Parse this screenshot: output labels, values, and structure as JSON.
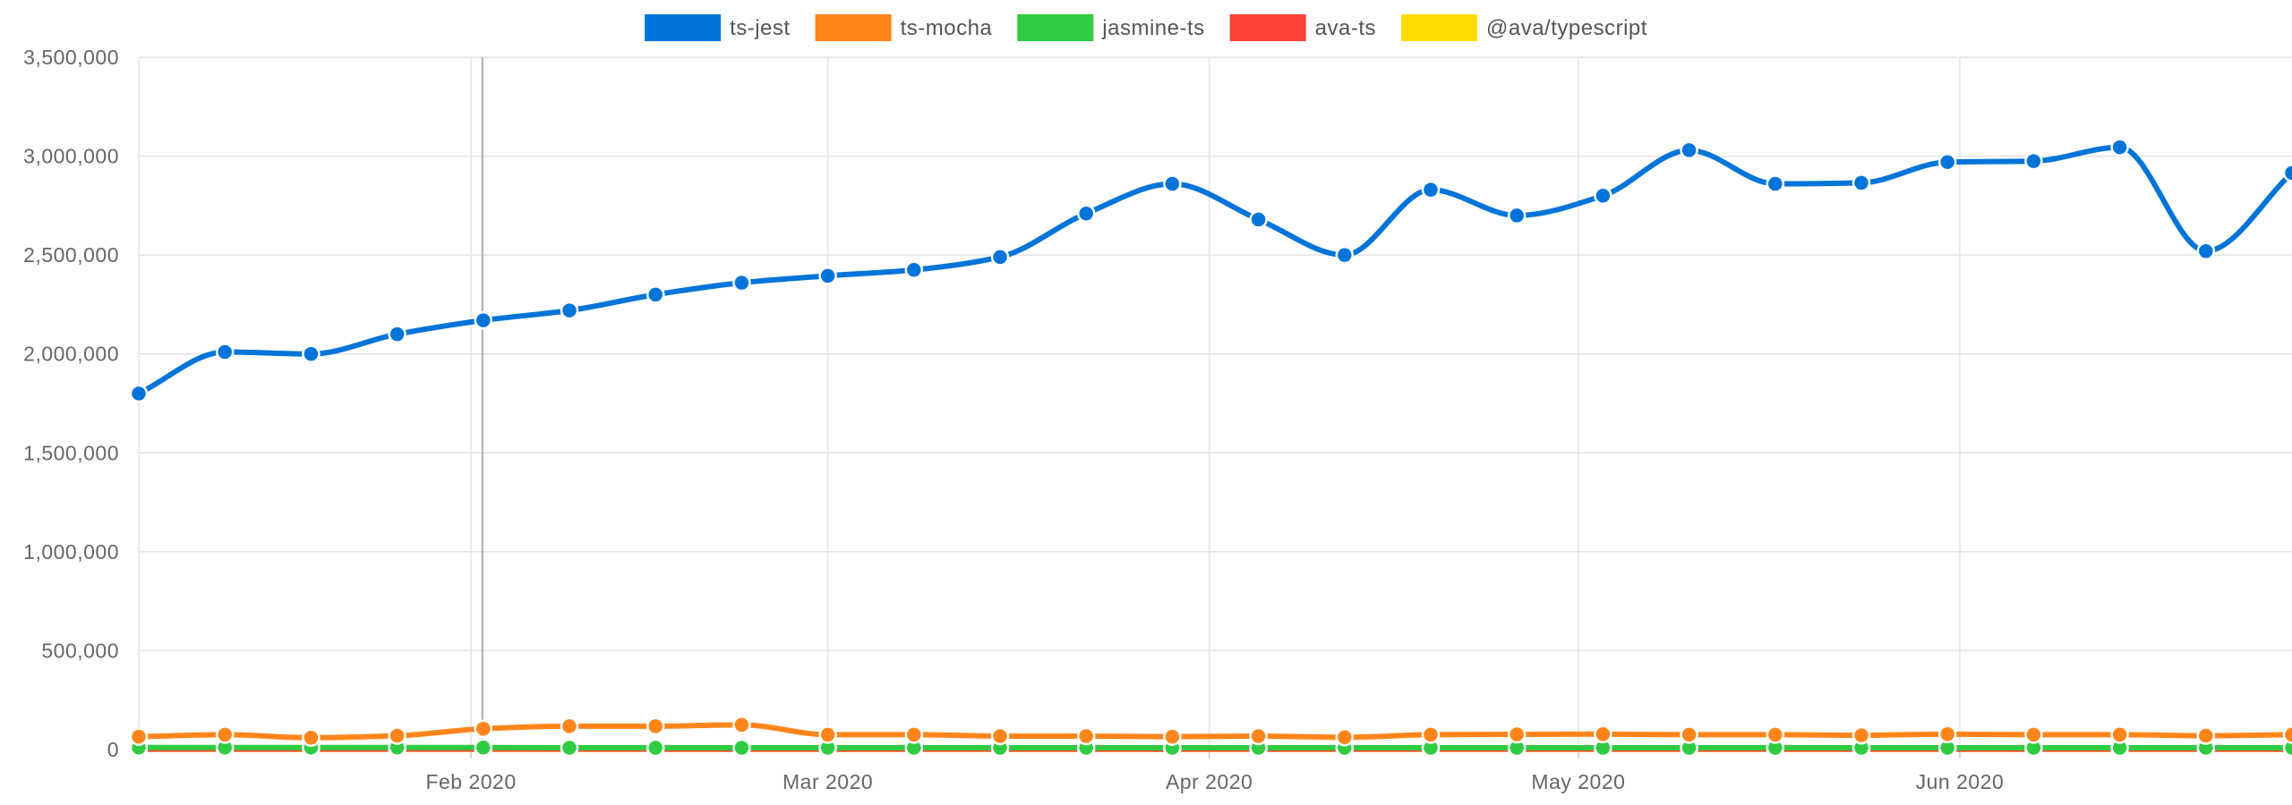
{
  "chart_data": {
    "type": "line",
    "title": "",
    "xlabel": "",
    "ylabel": "",
    "x": [
      "2020-01-05",
      "2020-01-12",
      "2020-01-19",
      "2020-01-26",
      "2020-02-02",
      "2020-02-09",
      "2020-02-16",
      "2020-02-23",
      "2020-03-01",
      "2020-03-08",
      "2020-03-15",
      "2020-03-22",
      "2020-03-29",
      "2020-04-05",
      "2020-04-12",
      "2020-04-19",
      "2020-04-26",
      "2020-05-03",
      "2020-05-10",
      "2020-05-17",
      "2020-05-24",
      "2020-05-31",
      "2020-06-07",
      "2020-06-14",
      "2020-06-21",
      "2020-06-28"
    ],
    "x_ticks": [
      {
        "date": "2020-02-01",
        "label": "Feb 2020"
      },
      {
        "date": "2020-03-01",
        "label": "Mar 2020"
      },
      {
        "date": "2020-04-01",
        "label": "Apr 2020"
      },
      {
        "date": "2020-05-01",
        "label": "May 2020"
      },
      {
        "date": "2020-06-01",
        "label": "Jun 2020"
      }
    ],
    "y_ticks": [
      "0",
      "500,000",
      "1,000,000",
      "1,500,000",
      "2,000,000",
      "2,500,000",
      "3,000,000",
      "3,500,000"
    ],
    "ylim": [
      0,
      3500000
    ],
    "grid": true,
    "legend_position": "top-center",
    "series": [
      {
        "name": "ts-jest",
        "color": "#0074d9",
        "values": [
          1800000,
          2010000,
          2000000,
          2100000,
          2170000,
          2220000,
          2300000,
          2360000,
          2395000,
          2425000,
          2490000,
          2710000,
          2860000,
          2680000,
          2500000,
          2830000,
          2700000,
          2800000,
          3030000,
          2860000,
          2865000,
          2970000,
          2975000,
          3045000,
          2520000,
          2915000
        ]
      },
      {
        "name": "ts-mocha",
        "color": "#ff851b",
        "values": [
          65000,
          75000,
          60000,
          70000,
          105000,
          118000,
          118000,
          125000,
          75000,
          75000,
          68000,
          68000,
          65000,
          68000,
          62000,
          75000,
          77000,
          78000,
          75000,
          75000,
          72000,
          78000,
          75000,
          75000,
          70000,
          75000
        ]
      },
      {
        "name": "jasmine-ts",
        "color": "#2ecc40",
        "values": [
          10000,
          10000,
          10000,
          10000,
          10000,
          9000,
          9000,
          9000,
          9000,
          9000,
          9000,
          9000,
          9000,
          9000,
          9000,
          9000,
          9000,
          9000,
          9000,
          9000,
          9000,
          9000,
          9000,
          9000,
          9000,
          9000
        ]
      },
      {
        "name": "ava-ts",
        "color": "#ff4136",
        "values": [
          2000,
          2000,
          2000,
          2000,
          2000,
          2000,
          2000,
          2000,
          2000,
          2000,
          2000,
          2000,
          2000,
          2000,
          2000,
          2000,
          2000,
          2000,
          2000,
          2000,
          2000,
          2000,
          2000,
          2000,
          2000,
          2000
        ]
      },
      {
        "name": "@ava/typescript",
        "color": "#ffdc00",
        "values": [
          1000,
          1000,
          1000,
          1000,
          1000,
          1000,
          1000,
          1000,
          1000,
          1000,
          1000,
          1000,
          1000,
          1000,
          1000,
          1000,
          1000,
          1000,
          1000,
          1000,
          1000,
          1000,
          1000,
          1000,
          1000,
          1000
        ]
      }
    ]
  }
}
